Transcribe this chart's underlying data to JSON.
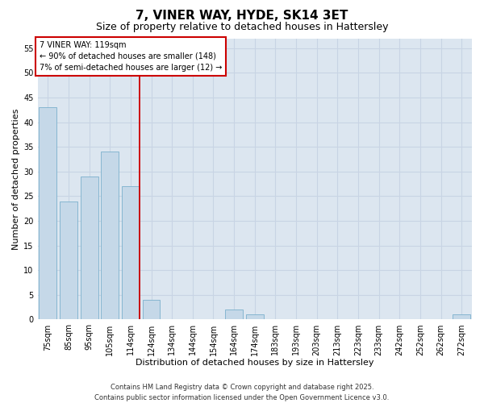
{
  "title": "7, VINER WAY, HYDE, SK14 3ET",
  "subtitle": "Size of property relative to detached houses in Hattersley",
  "xlabel": "Distribution of detached houses by size in Hattersley",
  "ylabel": "Number of detached properties",
  "categories": [
    "75sqm",
    "85sqm",
    "95sqm",
    "105sqm",
    "114sqm",
    "124sqm",
    "134sqm",
    "144sqm",
    "154sqm",
    "164sqm",
    "174sqm",
    "183sqm",
    "193sqm",
    "203sqm",
    "213sqm",
    "223sqm",
    "233sqm",
    "242sqm",
    "252sqm",
    "262sqm",
    "272sqm"
  ],
  "values": [
    43,
    24,
    29,
    34,
    27,
    4,
    0,
    0,
    0,
    2,
    1,
    0,
    0,
    0,
    0,
    0,
    0,
    0,
    0,
    0,
    1
  ],
  "bar_color": "#c5d8e8",
  "bar_edge_color": "#7ab0cc",
  "vline_color": "#cc0000",
  "annotation_text": "7 VINER WAY: 119sqm\n← 90% of detached houses are smaller (148)\n7% of semi-detached houses are larger (12) →",
  "annotation_box_color": "#ffffff",
  "annotation_box_edge": "#cc0000",
  "ylim": [
    0,
    57
  ],
  "yticks": [
    0,
    5,
    10,
    15,
    20,
    25,
    30,
    35,
    40,
    45,
    50,
    55
  ],
  "grid_color": "#c8d4e4",
  "background_color": "#dce6f0",
  "footer_text": "Contains HM Land Registry data © Crown copyright and database right 2025.\nContains public sector information licensed under the Open Government Licence v3.0.",
  "title_fontsize": 11,
  "subtitle_fontsize": 9,
  "label_fontsize": 8,
  "tick_fontsize": 7,
  "annotation_fontsize": 7,
  "footer_fontsize": 6
}
